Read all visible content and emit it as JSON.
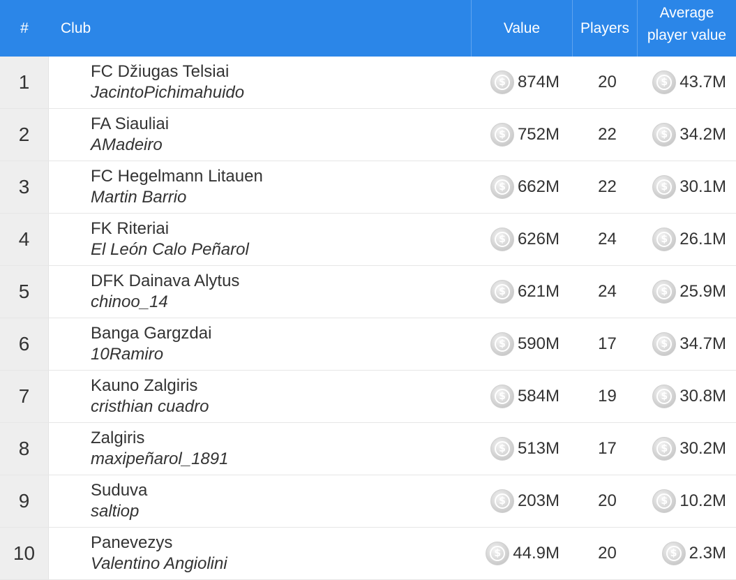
{
  "header": {
    "rank": "#",
    "club": "Club",
    "value": "Value",
    "players": "Players",
    "avg_line1": "Average",
    "avg_line2": "player value"
  },
  "coin_icon": "silver-coin-dollar",
  "rows": [
    {
      "rank": "1",
      "club": "FC Džiugas Telsiai",
      "manager": "JacintoPichimahuido",
      "value": "874M",
      "players": "20",
      "avg": "43.7M"
    },
    {
      "rank": "2",
      "club": "FA Siauliai",
      "manager": "AMadeiro",
      "value": "752M",
      "players": "22",
      "avg": "34.2M"
    },
    {
      "rank": "3",
      "club": "FC Hegelmann Litauen",
      "manager": "Martin Barrio",
      "value": "662M",
      "players": "22",
      "avg": "30.1M"
    },
    {
      "rank": "4",
      "club": "FK Riteriai",
      "manager": "El León Calo Peñarol",
      "value": "626M",
      "players": "24",
      "avg": "26.1M"
    },
    {
      "rank": "5",
      "club": "DFK Dainava Alytus",
      "manager": "chinoo_14",
      "value": "621M",
      "players": "24",
      "avg": "25.9M"
    },
    {
      "rank": "6",
      "club": "Banga Gargzdai",
      "manager": "10Ramiro",
      "value": "590M",
      "players": "17",
      "avg": "34.7M"
    },
    {
      "rank": "7",
      "club": "Kauno Zalgiris",
      "manager": "cristhian cuadro",
      "value": "584M",
      "players": "19",
      "avg": "30.8M"
    },
    {
      "rank": "8",
      "club": "Zalgiris",
      "manager": "maxipeñarol_1891",
      "value": "513M",
      "players": "17",
      "avg": "30.2M"
    },
    {
      "rank": "9",
      "club": "Suduva",
      "manager": "saltiop",
      "value": "203M",
      "players": "20",
      "avg": "10.2M"
    },
    {
      "rank": "10",
      "club": "Panevezys",
      "manager": "Valentino Angiolini",
      "value": "44.9M",
      "players": "20",
      "avg": "2.3M"
    }
  ]
}
